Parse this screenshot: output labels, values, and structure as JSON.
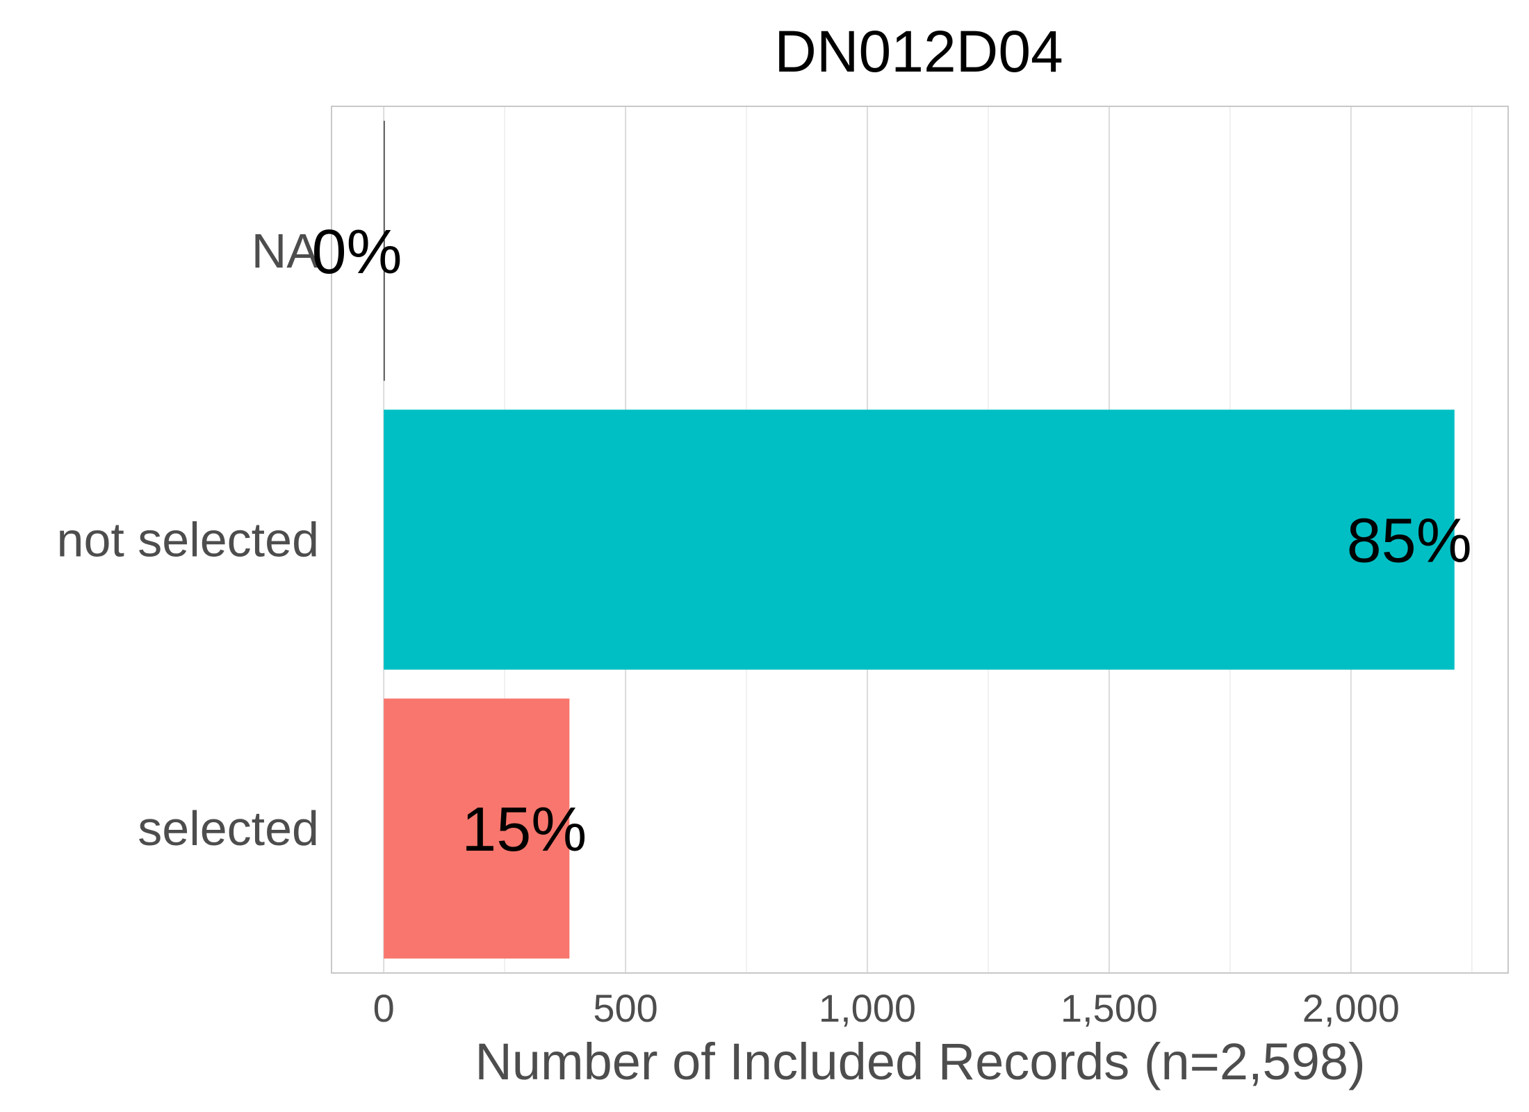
{
  "chart_data": {
    "type": "bar",
    "orientation": "horizontal",
    "title": "DN012D04",
    "xlabel": "Number of Included Records (n=2,598)",
    "ylabel": "",
    "categories": [
      "NA",
      "not selected",
      "selected"
    ],
    "values": [
      2,
      2214,
      384
    ],
    "data_labels": [
      "0%",
      "85%",
      "15%"
    ],
    "colors": [
      "#333333",
      "#00BFC4",
      "#F8766D"
    ],
    "xlim": [
      -108,
      2325
    ],
    "xticks": [
      0,
      500,
      1000,
      1500,
      2000
    ],
    "xtick_labels": [
      "0",
      "500",
      "1,000",
      "1,500",
      "2,000"
    ],
    "grid": true,
    "legend": "none"
  }
}
